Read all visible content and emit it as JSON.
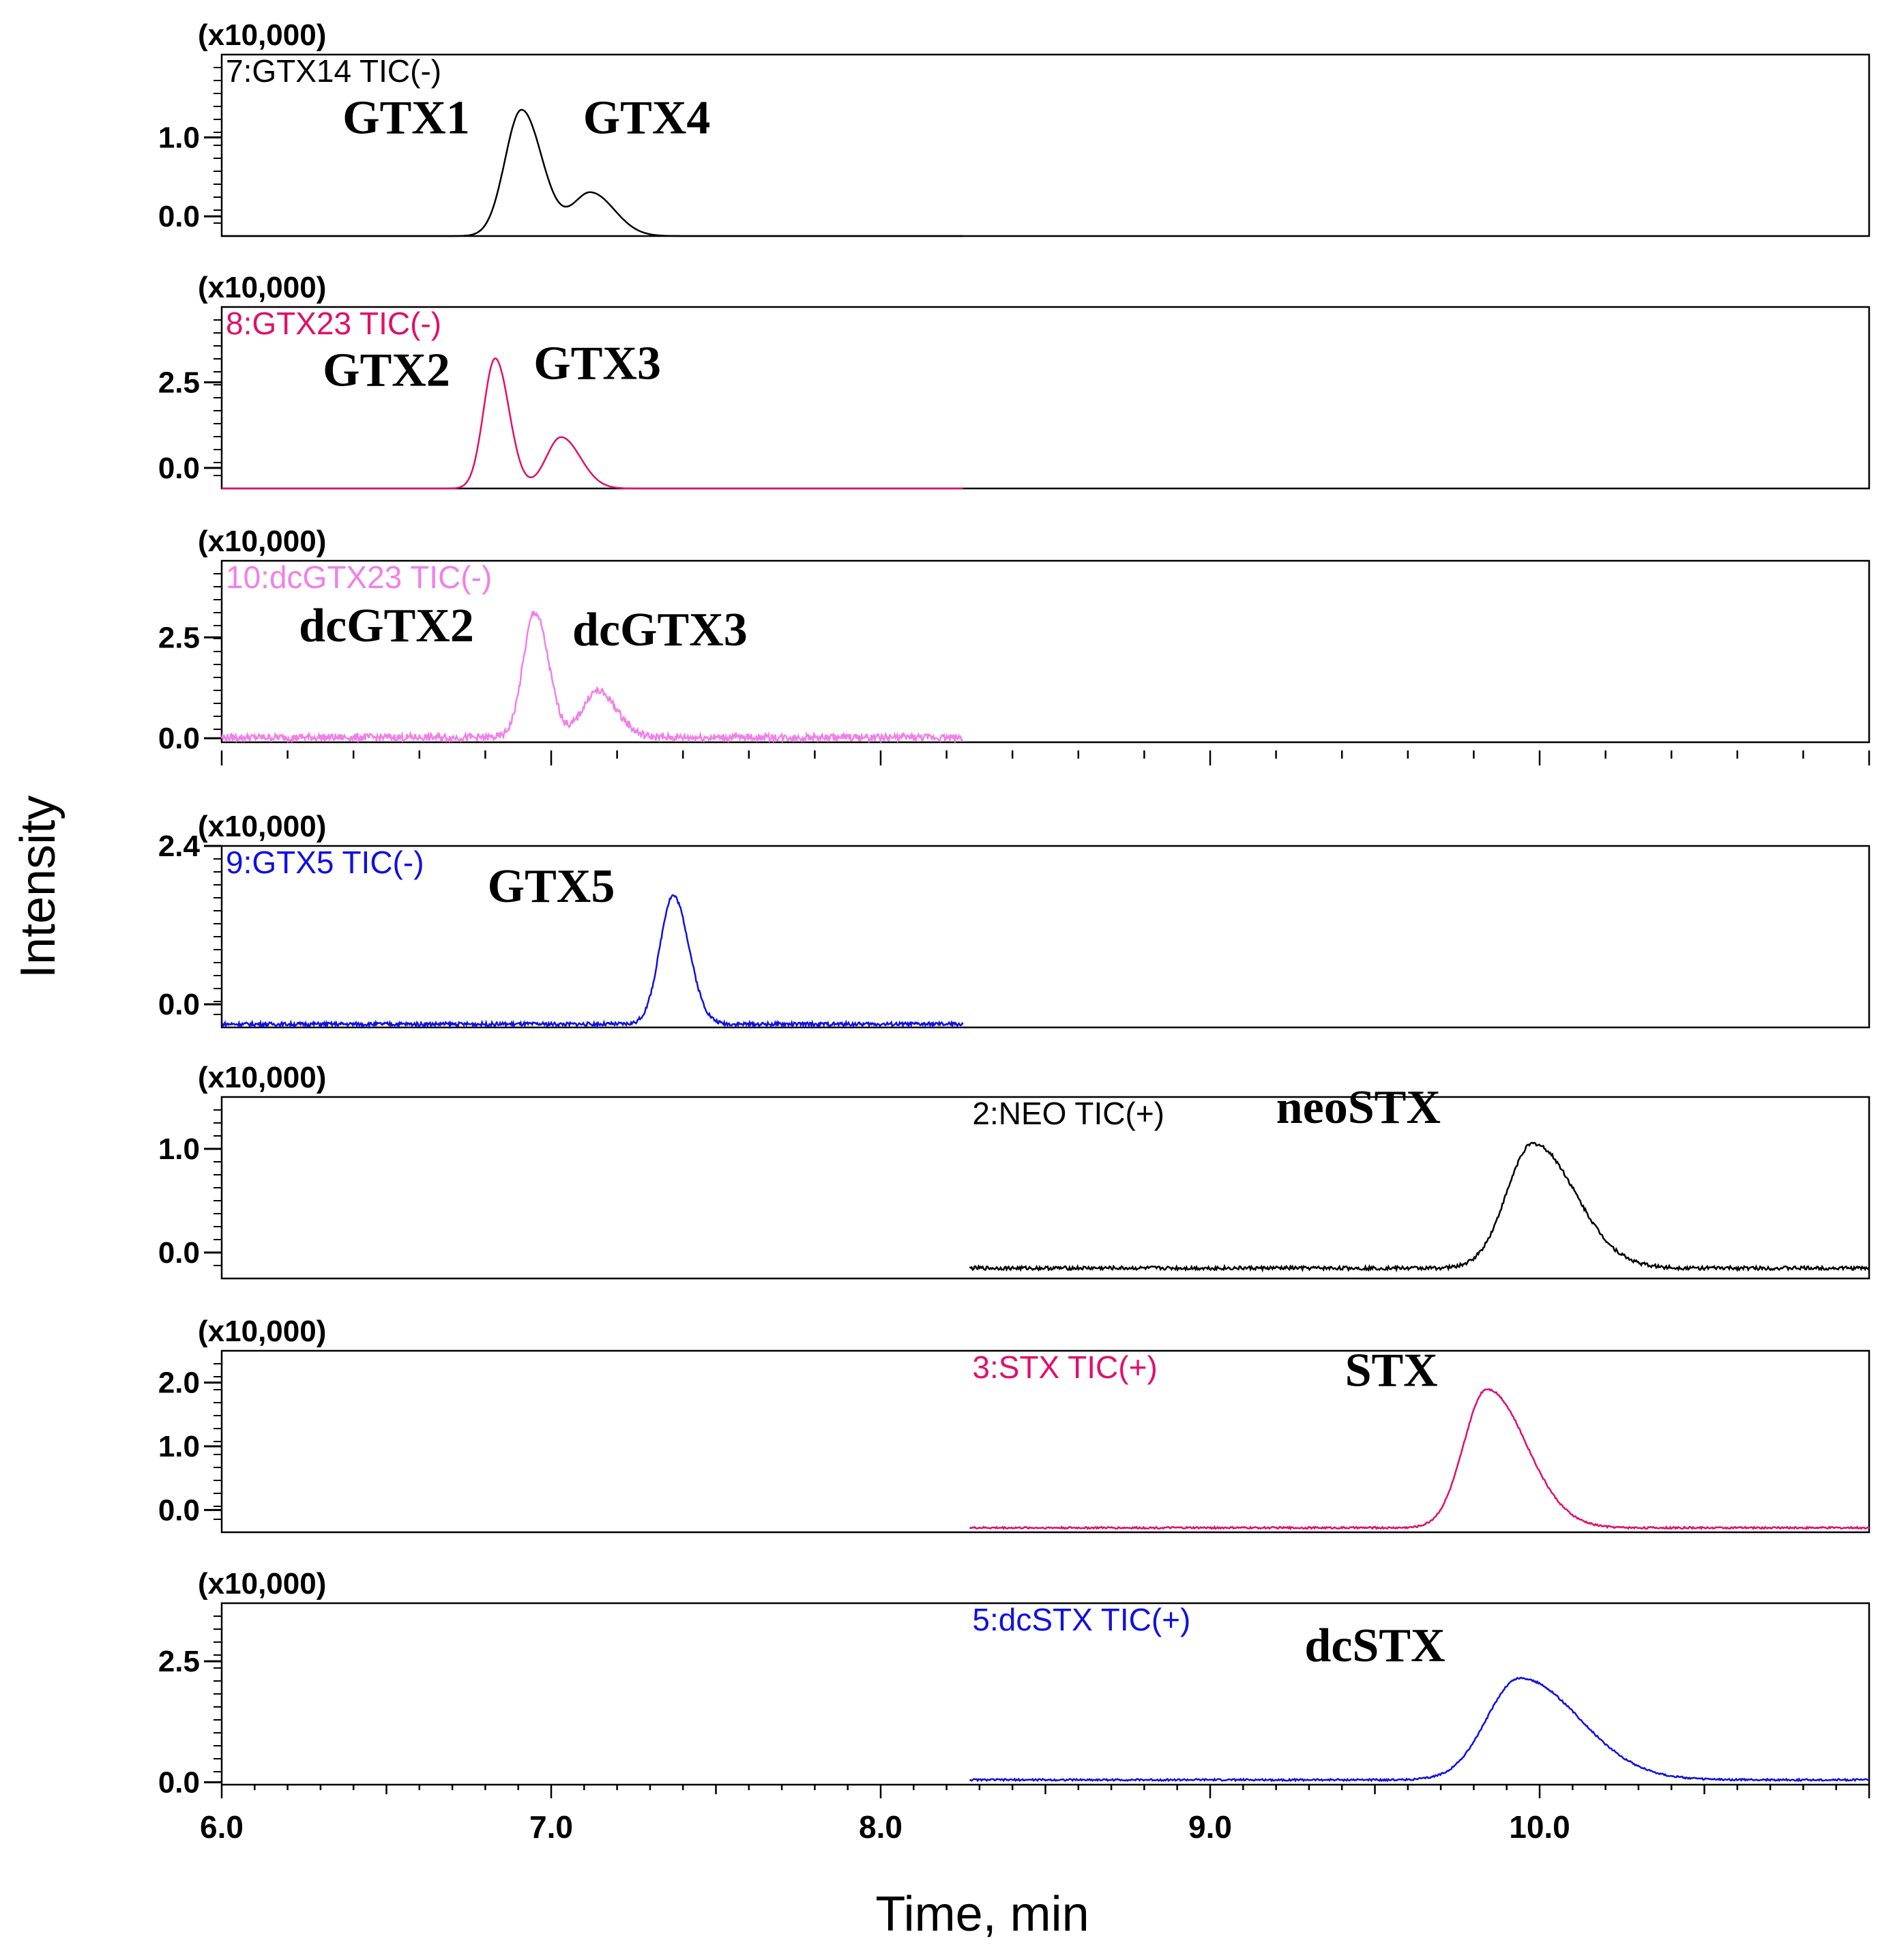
{
  "chart_data": {
    "type": "line",
    "xlabel": "Time, min",
    "ylabel": "Intensity",
    "xlim": [
      6.0,
      11.0
    ],
    "x_ticks": [
      "6.0",
      "7.0",
      "8.0",
      "9.0",
      "10.0"
    ],
    "panels": [
      {
        "title": "7:GTX14 TIC(-)",
        "color": "#000000",
        "scale": "(x10,000)",
        "ylim": [
          -0.25,
          2.05
        ],
        "y_ticks": [
          {
            "v": 0.0,
            "label": "0.0"
          },
          {
            "v": 1.0,
            "label": "1.0"
          }
        ],
        "x_range": [
          6.0,
          8.25
        ],
        "baseline": -0.25,
        "noise": 0,
        "peaks": [
          {
            "t": 6.91,
            "h": 1.6,
            "w": 0.05,
            "tail": 1.25
          },
          {
            "t": 7.12,
            "h": 0.55,
            "w": 0.055,
            "tail": 1.3
          }
        ],
        "labels": [
          {
            "text": "GTX1",
            "t": 6.56,
            "y": 1.05
          },
          {
            "text": "GTX4",
            "t": 7.29,
            "y": 1.05
          }
        ]
      },
      {
        "title": "8:GTX23 TIC(-)",
        "color": "#E0106A",
        "scale": "(x10,000)",
        "ylim": [
          -0.6,
          4.7
        ],
        "y_ticks": [
          {
            "v": 0.0,
            "label": "0.0"
          },
          {
            "v": 2.5,
            "label": "2.5"
          }
        ],
        "x_range": [
          6.0,
          8.25
        ],
        "baseline": -0.6,
        "noise": 0,
        "peaks": [
          {
            "t": 6.83,
            "h": 3.8,
            "w": 0.035,
            "tail": 1.2
          },
          {
            "t": 7.03,
            "h": 1.5,
            "w": 0.045,
            "tail": 1.3
          }
        ],
        "labels": [
          {
            "text": "GTX2",
            "t": 6.5,
            "y": 2.4
          },
          {
            "text": "GTX3",
            "t": 7.14,
            "y": 2.6
          }
        ]
      },
      {
        "title": "10:dcGTX23 TIC(-)",
        "color": "#F080E8",
        "scale": "(x10,000)",
        "ylim": [
          -0.1,
          4.4
        ],
        "y_ticks": [
          {
            "v": 0.0,
            "label": "0.0"
          },
          {
            "v": 2.5,
            "label": "2.5"
          }
        ],
        "x_range": [
          6.0,
          8.25
        ],
        "baseline": 0.02,
        "noise": 0.02,
        "peaks": [
          {
            "t": 6.95,
            "h": 3.1,
            "w": 0.035,
            "tail": 1.2
          },
          {
            "t": 7.14,
            "h": 1.15,
            "w": 0.045,
            "tail": 1.3
          }
        ],
        "labels": [
          {
            "text": "dcGTX2",
            "t": 6.5,
            "y": 2.4
          },
          {
            "text": "dcGTX3",
            "t": 7.33,
            "y": 2.3
          }
        ]
      },
      {
        "title": "9:GTX5 TIC(-)",
        "color": "#1010E0",
        "scale": "(x10,000)",
        "ylim": [
          -0.35,
          2.4
        ],
        "y_ticks": [
          {
            "v": 0.0,
            "label": "0.0"
          },
          {
            "v": 2.4,
            "label": "2.4"
          }
        ],
        "x_range": [
          6.0,
          8.25
        ],
        "baseline": -0.3,
        "noise": 0.01,
        "peaks": [
          {
            "t": 7.37,
            "h": 1.95,
            "w": 0.04,
            "tail": 1.2
          }
        ],
        "labels": [
          {
            "text": "GTX5",
            "t": 7.0,
            "y": 1.55
          }
        ]
      },
      {
        "title": "2:NEO TIC(+)",
        "color": "#000000",
        "scale": "(x10,000)",
        "ylim": [
          -0.25,
          1.5
        ],
        "y_ticks": [
          {
            "v": 0.0,
            "label": "0.0"
          },
          {
            "v": 1.0,
            "label": "1.0"
          }
        ],
        "x_range": [
          8.27,
          11.0
        ],
        "baseline": -0.15,
        "noise": 0.01,
        "peaks": [
          {
            "t": 9.98,
            "h": 1.2,
            "w": 0.08,
            "tail": 1.6
          }
        ],
        "labels": [
          {
            "text": "neoSTX",
            "t": 9.45,
            "y": 1.25
          }
        ]
      },
      {
        "title": "3:STX TIC(+)",
        "color": "#E0106A",
        "scale": "(x10,000)",
        "ylim": [
          -0.35,
          2.5
        ],
        "y_ticks": [
          {
            "v": 0.0,
            "label": "0.0"
          },
          {
            "v": 1.0,
            "label": "1.0"
          },
          {
            "v": 2.0,
            "label": "2.0"
          }
        ],
        "x_range": [
          8.27,
          11.0
        ],
        "baseline": -0.28,
        "noise": 0.005,
        "peaks": [
          {
            "t": 9.84,
            "h": 2.18,
            "w": 0.07,
            "tail": 1.7
          }
        ],
        "labels": [
          {
            "text": "STX",
            "t": 9.55,
            "y": 1.95
          }
        ]
      },
      {
        "title": "5:dcSTX TIC(+)",
        "color": "#1010E0",
        "scale": "(x10,000)",
        "ylim": [
          -0.05,
          3.7
        ],
        "y_ticks": [
          {
            "v": 0.0,
            "label": "0.0"
          },
          {
            "v": 2.5,
            "label": "2.5"
          }
        ],
        "x_range": [
          8.27,
          11.0
        ],
        "baseline": 0.05,
        "noise": 0.005,
        "peaks": [
          {
            "t": 9.94,
            "h": 2.1,
            "w": 0.1,
            "tail": 1.8
          }
        ],
        "labels": [
          {
            "text": "dcSTX",
            "t": 9.5,
            "y": 2.5
          }
        ]
      }
    ]
  }
}
